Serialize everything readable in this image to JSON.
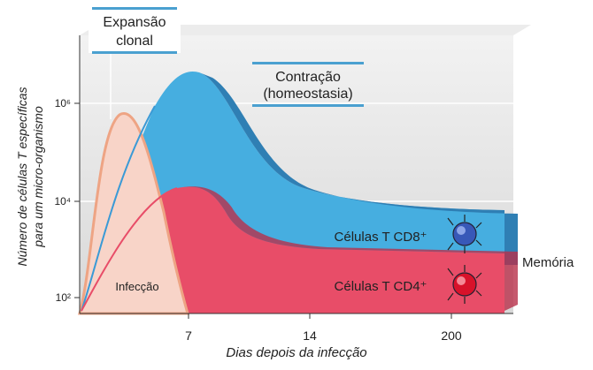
{
  "header": {
    "expansion": [
      "Expansão",
      "clonal"
    ],
    "contraction": [
      "Contração",
      "(homeostasia)"
    ]
  },
  "axes": {
    "y_title": [
      "Número de células T específicas",
      "para um micro-organismo"
    ],
    "x_title": "Dias depois da infecção",
    "y_tick_labels": [
      "10⁶",
      "10⁴",
      "10²"
    ],
    "x_tick_labels": [
      "7",
      "14",
      "200"
    ]
  },
  "labels": {
    "infection": "Infecção",
    "cd8": "Células T CD8⁺",
    "cd4": "Células T CD4⁺",
    "memory": "Memória"
  }
}
